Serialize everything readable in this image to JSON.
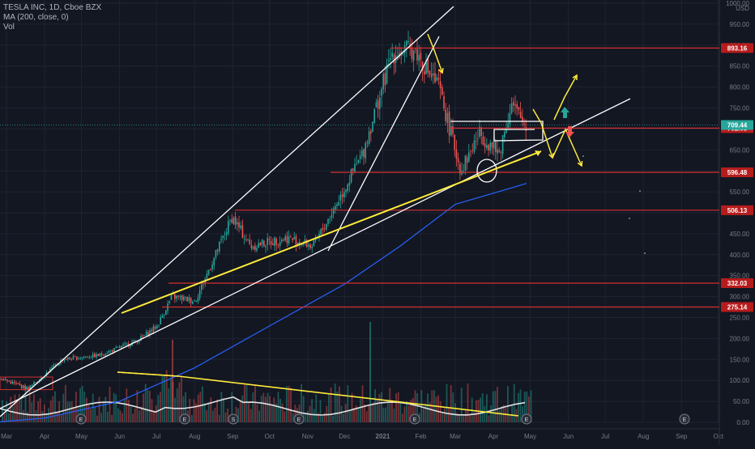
{
  "legend": {
    "symbol": "TESLA INC, 1D, Cboe BZX",
    "ma": "MA (200, close, 0)",
    "vol": "Vol"
  },
  "currency": "USD",
  "colors": {
    "background": "#131722",
    "grid": "#1f2333",
    "up": "#26a69a",
    "down": "#ef5350",
    "level_line": "#d32f2f",
    "ma_line": "#2962ff",
    "trend_white": "#ffffff",
    "trend_yellow": "#ffeb3b",
    "badge_current": "#26a69a",
    "badge_level": "#b71c1c"
  },
  "chart_data": {
    "type": "line",
    "title": "",
    "x_ticks": [
      "Mar",
      "Apr",
      "May",
      "Jun",
      "Jul",
      "Aug",
      "Sep",
      "Oct",
      "Nov",
      "Dec",
      "2021",
      "Feb",
      "Mar",
      "Apr",
      "May",
      "Jun",
      "Jul",
      "Aug",
      "Sep",
      "Oct"
    ],
    "y_ticks": [
      "1000.00",
      "950.00",
      "900.00",
      "850.00",
      "800.00",
      "750.00",
      "700.00",
      "650.00",
      "600.00",
      "550.00",
      "500.00",
      "450.00",
      "400.00",
      "350.00",
      "300.00",
      "250.00",
      "200.00",
      "150.00",
      "100.00",
      "50.00",
      "0.00"
    ],
    "y_range": [
      0,
      1000
    ],
    "horizontal_levels": [
      {
        "label": "893.16",
        "value": 893.16
      },
      {
        "label": "702.03",
        "value": 702.03
      },
      {
        "label": "596.48",
        "value": 596.48
      },
      {
        "label": "506.13",
        "value": 506.13
      },
      {
        "label": "332.03",
        "value": 332.03
      },
      {
        "label": "275.14",
        "value": 275.14
      }
    ],
    "current_price": {
      "label": "709.44",
      "value": 709.44
    },
    "price_path": [
      {
        "date": "2020-02-20",
        "close": 110
      },
      {
        "date": "2020-03-18",
        "close": 80
      },
      {
        "date": "2020-04-15",
        "close": 150
      },
      {
        "date": "2020-05-15",
        "close": 160
      },
      {
        "date": "2020-06-15",
        "close": 195
      },
      {
        "date": "2020-07-01",
        "close": 230
      },
      {
        "date": "2020-07-13",
        "close": 300
      },
      {
        "date": "2020-08-01",
        "close": 290
      },
      {
        "date": "2020-08-31",
        "close": 490
      },
      {
        "date": "2020-09-15",
        "close": 420
      },
      {
        "date": "2020-10-15",
        "close": 440
      },
      {
        "date": "2020-11-05",
        "close": 420
      },
      {
        "date": "2020-11-20",
        "close": 500
      },
      {
        "date": "2020-12-15",
        "close": 640
      },
      {
        "date": "2021-01-08",
        "close": 880
      },
      {
        "date": "2021-01-26",
        "close": 890
      },
      {
        "date": "2021-02-15",
        "close": 800
      },
      {
        "date": "2021-03-05",
        "close": 600
      },
      {
        "date": "2021-03-20",
        "close": 690
      },
      {
        "date": "2021-04-05",
        "close": 640
      },
      {
        "date": "2021-04-15",
        "close": 760
      },
      {
        "date": "2021-04-28",
        "close": 700
      }
    ],
    "ma200_path": [
      {
        "date": "2020-02-20",
        "close": 0
      },
      {
        "date": "2020-04-01",
        "close": 10
      },
      {
        "date": "2020-06-01",
        "close": 50
      },
      {
        "date": "2020-08-01",
        "close": 130
      },
      {
        "date": "2020-10-01",
        "close": 230
      },
      {
        "date": "2020-12-01",
        "close": 330
      },
      {
        "date": "2021-01-15",
        "close": 420
      },
      {
        "date": "2021-03-01",
        "close": 520
      },
      {
        "date": "2021-04-28",
        "close": 570
      }
    ],
    "earnings_markers": [
      "E",
      "E",
      "S",
      "E",
      "E",
      "E",
      "E"
    ]
  }
}
